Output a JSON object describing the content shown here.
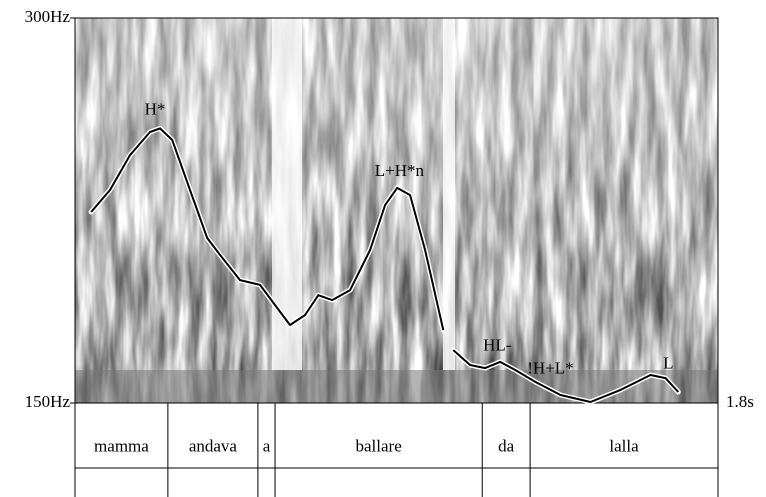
{
  "chart_data": {
    "type": "line",
    "xlim": [
      0,
      1.8
    ],
    "xticks": [
      {
        "value": 1.8,
        "label": "1.8s"
      }
    ],
    "ylim": [
      150,
      300
    ],
    "yticks": [
      {
        "value": 150,
        "label": "150Hz"
      },
      {
        "value": 300,
        "label": "300Hz"
      }
    ],
    "x": [
      0.045,
      0.098,
      0.154,
      0.21,
      0.238,
      0.272,
      0.322,
      0.37,
      0.406,
      0.462,
      0.518,
      0.56,
      0.602,
      0.644,
      0.681,
      0.72,
      0.77,
      0.826,
      0.868,
      0.902,
      0.938,
      0.98,
      1.031,
      1.045,
      1.059,
      1.106,
      1.148,
      1.19,
      1.232,
      1.289,
      1.359,
      1.443,
      1.527,
      1.611,
      1.653,
      1.689
    ],
    "series": [
      {
        "color": "#000000",
        "values": [
          224.4,
          233,
          246.6,
          255.6,
          257,
          252.5,
          233,
          214.3,
          207.7,
          197.9,
          196,
          188.2,
          180.4,
          184.3,
          192,
          190.1,
          194,
          209.6,
          227.1,
          233.8,
          231,
          209.6,
          178.4,
          null,
          170.6,
          164.8,
          163.6,
          166,
          162.9,
          158.2,
          153.1,
          150.4,
          155.1,
          160.9,
          159.7,
          154.3
        ]
      }
    ],
    "annotations": [
      {
        "text": "H*",
        "x": 0.224,
        "y": 264
      },
      {
        "text": "L+H*n",
        "x": 0.908,
        "y": 240
      },
      {
        "text": "HL-",
        "x": 1.182,
        "y": 172
      },
      {
        "text": "!H+L*",
        "x": 1.331,
        "y": 163
      },
      {
        "text": "L",
        "x": 1.661,
        "y": 165
      }
    ],
    "words": [
      {
        "text": "mamma",
        "start": 0,
        "end": 0.26
      },
      {
        "text": "andava",
        "start": 0.26,
        "end": 0.512
      },
      {
        "text": "a",
        "start": 0.512,
        "end": 0.56
      },
      {
        "text": "ballare",
        "start": 0.56,
        "end": 1.14
      },
      {
        "text": "da",
        "start": 1.14,
        "end": 1.274
      },
      {
        "text": "lalla",
        "start": 1.274,
        "end": 1.8
      }
    ]
  }
}
